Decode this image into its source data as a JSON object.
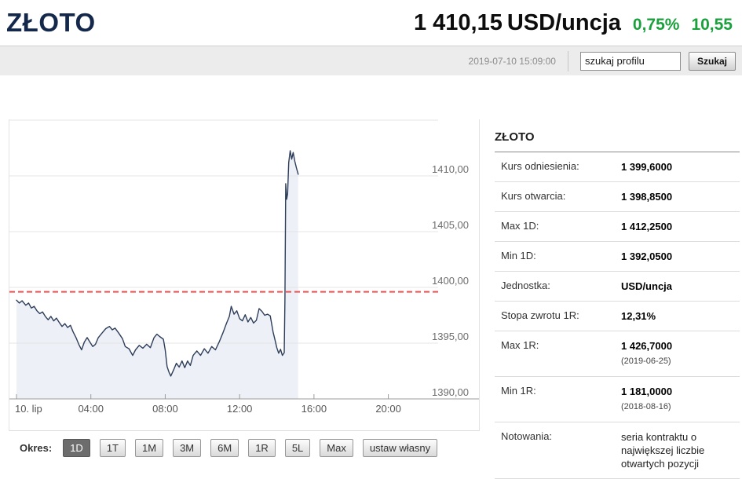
{
  "header": {
    "title": "ZŁOTO",
    "price": "1 410,15",
    "unit": "USD/uncja",
    "change_pct": "0,75%",
    "change_abs": "10,55",
    "timestamp": "2019-07-10 15:09:00",
    "search_placeholder": "szukaj profilu",
    "search_button": "Szukaj",
    "accent_green": "#1aa03c",
    "title_color": "#14284b"
  },
  "chart_data": {
    "type": "line",
    "title": "",
    "xlabel": "",
    "ylabel": "",
    "xlim": [
      0,
      24
    ],
    "ylim": [
      1390,
      1415
    ],
    "grid": true,
    "legend": "none",
    "grid_values": [
      1415,
      1410,
      1405,
      1400,
      1395
    ],
    "y_ticks": [
      {
        "value": 1410,
        "label": "1410,00"
      },
      {
        "value": 1405,
        "label": "1405,00"
      },
      {
        "value": 1400,
        "label": "1400,00"
      },
      {
        "value": 1395,
        "label": "1395,00"
      },
      {
        "value": 1390,
        "label": "1390,00"
      }
    ],
    "x_ticks": [
      {
        "hour": 0,
        "label": "10. lip"
      },
      {
        "hour": 4,
        "label": "04:00"
      },
      {
        "hour": 8,
        "label": "08:00"
      },
      {
        "hour": 12,
        "label": "12:00"
      },
      {
        "hour": 16,
        "label": "16:00"
      },
      {
        "hour": 20,
        "label": "20:00"
      }
    ],
    "reference_line": {
      "value": 1399.6,
      "color": "#f15151",
      "style": "dashed",
      "meaning": "kurs odniesienia"
    },
    "series": [
      {
        "name": "ZŁOTO intraday (USD/uncja)",
        "color": "#2e3e5a",
        "fill": "#edf0f6",
        "points": [
          [
            0,
            1398.85
          ],
          [
            0.15,
            1398.6
          ],
          [
            0.3,
            1398.8
          ],
          [
            0.5,
            1398.4
          ],
          [
            0.65,
            1398.6
          ],
          [
            0.8,
            1398.15
          ],
          [
            0.95,
            1398.3
          ],
          [
            1.1,
            1397.9
          ],
          [
            1.25,
            1397.65
          ],
          [
            1.4,
            1397.8
          ],
          [
            1.55,
            1397.4
          ],
          [
            1.7,
            1397.1
          ],
          [
            1.85,
            1397.4
          ],
          [
            2,
            1397
          ],
          [
            2.15,
            1397.25
          ],
          [
            2.3,
            1396.85
          ],
          [
            2.45,
            1396.5
          ],
          [
            2.6,
            1396.75
          ],
          [
            2.75,
            1396.4
          ],
          [
            2.9,
            1396.6
          ],
          [
            3.05,
            1396
          ],
          [
            3.2,
            1395.5
          ],
          [
            3.35,
            1394.9
          ],
          [
            3.5,
            1394.4
          ],
          [
            3.65,
            1395.1
          ],
          [
            3.8,
            1395.5
          ],
          [
            3.95,
            1395.1
          ],
          [
            4.1,
            1394.7
          ],
          [
            4.25,
            1394.9
          ],
          [
            4.4,
            1395.5
          ],
          [
            4.6,
            1395.9
          ],
          [
            4.8,
            1396.3
          ],
          [
            5,
            1396.5
          ],
          [
            5.15,
            1396.2
          ],
          [
            5.3,
            1396.35
          ],
          [
            5.5,
            1395.9
          ],
          [
            5.7,
            1395.4
          ],
          [
            5.85,
            1394.7
          ],
          [
            6.05,
            1394.5
          ],
          [
            6.25,
            1393.9
          ],
          [
            6.4,
            1394.4
          ],
          [
            6.6,
            1394.8
          ],
          [
            6.8,
            1394.55
          ],
          [
            7,
            1394.9
          ],
          [
            7.2,
            1394.6
          ],
          [
            7.4,
            1395.5
          ],
          [
            7.55,
            1395.8
          ],
          [
            7.7,
            1395.6
          ],
          [
            7.9,
            1395.35
          ],
          [
            8,
            1394.4
          ],
          [
            8.1,
            1392.9
          ],
          [
            8.2,
            1392.4
          ],
          [
            8.3,
            1392.05
          ],
          [
            8.45,
            1392.6
          ],
          [
            8.6,
            1393.2
          ],
          [
            8.75,
            1392.85
          ],
          [
            8.9,
            1393.4
          ],
          [
            9.05,
            1392.8
          ],
          [
            9.2,
            1393.4
          ],
          [
            9.35,
            1393
          ],
          [
            9.5,
            1393.9
          ],
          [
            9.7,
            1394.3
          ],
          [
            9.9,
            1393.9
          ],
          [
            10.1,
            1394.5
          ],
          [
            10.3,
            1394.1
          ],
          [
            10.5,
            1394.7
          ],
          [
            10.7,
            1394.4
          ],
          [
            10.9,
            1395.1
          ],
          [
            11.1,
            1395.9
          ],
          [
            11.3,
            1396.8
          ],
          [
            11.45,
            1397.4
          ],
          [
            11.55,
            1398.3
          ],
          [
            11.7,
            1397.6
          ],
          [
            11.85,
            1397.9
          ],
          [
            12,
            1397.2
          ],
          [
            12.15,
            1397
          ],
          [
            12.3,
            1397.55
          ],
          [
            12.45,
            1396.9
          ],
          [
            12.6,
            1397.3
          ],
          [
            12.75,
            1396.8
          ],
          [
            12.9,
            1397.05
          ],
          [
            13.05,
            1398.1
          ],
          [
            13.2,
            1397.85
          ],
          [
            13.35,
            1397.5
          ],
          [
            13.5,
            1397.6
          ],
          [
            13.65,
            1397.45
          ],
          [
            13.8,
            1396
          ],
          [
            13.9,
            1395.3
          ],
          [
            14,
            1394.6
          ],
          [
            14.1,
            1394.1
          ],
          [
            14.2,
            1394.45
          ],
          [
            14.3,
            1393.9
          ],
          [
            14.4,
            1394.15
          ],
          [
            14.44,
            1399
          ],
          [
            14.48,
            1409.3
          ],
          [
            14.53,
            1407.9
          ],
          [
            14.58,
            1408.4
          ],
          [
            14.64,
            1411.2
          ],
          [
            14.72,
            1412.25
          ],
          [
            14.8,
            1411.5
          ],
          [
            14.88,
            1412.1
          ],
          [
            14.97,
            1411.3
          ],
          [
            15.06,
            1410.7
          ],
          [
            15.15,
            1410.15
          ]
        ]
      }
    ]
  },
  "details": {
    "title": "ZŁOTO",
    "rows": [
      {
        "label": "Kurs odniesienia:",
        "value": "1 399,6000"
      },
      {
        "label": "Kurs otwarcia:",
        "value": "1 398,8500"
      },
      {
        "label": "Max 1D:",
        "value": "1 412,2500"
      },
      {
        "label": "Min 1D:",
        "value": "1 392,0500"
      },
      {
        "label": "Jednostka:",
        "value": "USD/uncja"
      },
      {
        "label": "Stopa zwrotu 1R:",
        "value": "12,31%"
      },
      {
        "label": "Max 1R:",
        "value": "1 426,7000",
        "sub": "(2019-06-25)"
      },
      {
        "label": "Min 1R:",
        "value": "1 181,0000",
        "sub": "(2018-08-16)"
      },
      {
        "label": "Notowania:",
        "value": "seria kontraktu o największej liczbie otwartych pozycji",
        "plain": true
      }
    ]
  },
  "period": {
    "label": "Okres:",
    "buttons": [
      {
        "label": "1D",
        "active": true
      },
      {
        "label": "1T"
      },
      {
        "label": "1M"
      },
      {
        "label": "3M"
      },
      {
        "label": "6M"
      },
      {
        "label": "1R"
      },
      {
        "label": "5L"
      },
      {
        "label": "Max"
      },
      {
        "label": "ustaw własny"
      }
    ]
  }
}
